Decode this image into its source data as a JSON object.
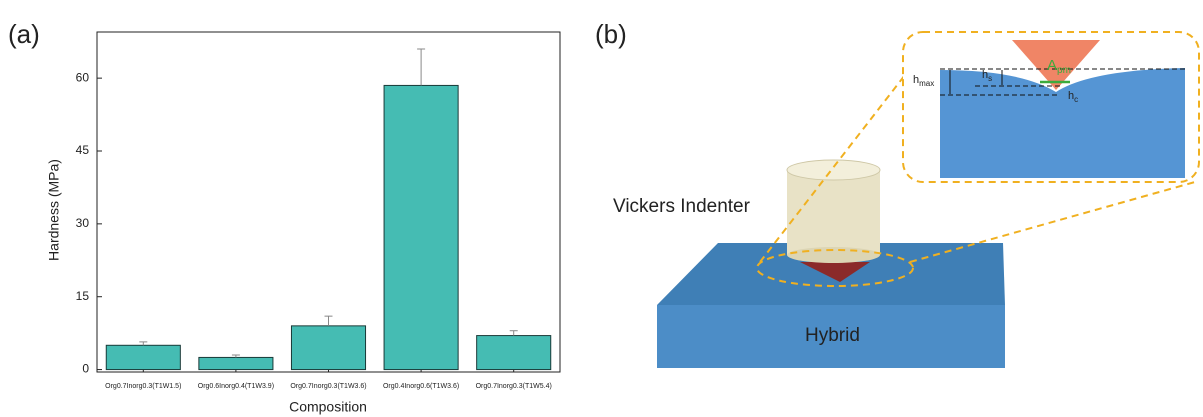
{
  "chart_data": {
    "type": "bar",
    "panel_label": "(a)",
    "xlabel": "Composition",
    "ylabel": "Hardness (MPa)",
    "categories": [
      "Org0.7Inorg0.3(T1W1.5)",
      "Org0.6Inorg0.4(T1W3.9)",
      "Org0.7Inorg0.3(T1W3.6)",
      "Org0.4Inorg0.6(T1W3.6)",
      "Org0.7Inorg0.3(T1W5.4)"
    ],
    "values": [
      5,
      2.5,
      9,
      58.5,
      7
    ],
    "errors": [
      0.7,
      0.5,
      2,
      7.5,
      1
    ],
    "color": "#45bcb3",
    "ylim": [
      -0.5,
      69.5
    ],
    "yticks": [
      0,
      15,
      30,
      45,
      60
    ]
  },
  "diagram": {
    "panel_label": "(b)",
    "indenter": "Vickers Indenter",
    "sample": "Hybrid",
    "h_max": {
      "main": "h",
      "sub": "max"
    },
    "h_s": {
      "main": "h",
      "sub": "s"
    },
    "h_c": {
      "main": "h",
      "sub": "c"
    },
    "a_pm": {
      "main": "A",
      "sub": "pm"
    }
  }
}
